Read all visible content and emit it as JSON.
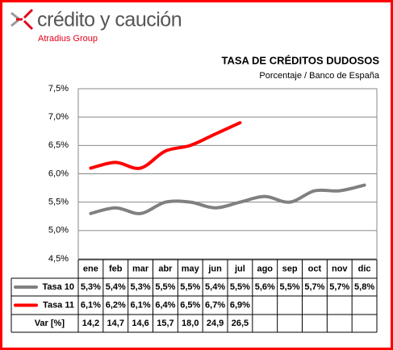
{
  "logo": {
    "brand": "crédito y caución",
    "group": "Atradius Group"
  },
  "chart_data": {
    "type": "line",
    "title": "TASA DE CRÉDITOS DUDOSOS",
    "subtitle": "Porcentaje / Banco de España",
    "categories": [
      "ene",
      "feb",
      "mar",
      "abr",
      "may",
      "jun",
      "jul",
      "ago",
      "sep",
      "oct",
      "nov",
      "dic"
    ],
    "series": [
      {
        "name": "Tasa 10",
        "color": "#808080",
        "values": [
          5.3,
          5.4,
          5.3,
          5.5,
          5.5,
          5.4,
          5.5,
          5.6,
          5.5,
          5.7,
          5.7,
          5.8
        ],
        "value_labels": [
          "5,3%",
          "5,4%",
          "5,3%",
          "5,5%",
          "5,5%",
          "5,4%",
          "5,5%",
          "5,6%",
          "5,5%",
          "5,7%",
          "5,7%",
          "5,8%"
        ]
      },
      {
        "name": "Tasa 11",
        "color": "#ff0000",
        "values": [
          6.1,
          6.2,
          6.1,
          6.4,
          6.5,
          6.7,
          6.9,
          null,
          null,
          null,
          null,
          null
        ],
        "value_labels": [
          "6,1%",
          "6,2%",
          "6,1%",
          "6,4%",
          "6,5%",
          "6,7%",
          "6,9%",
          null,
          null,
          null,
          null,
          null
        ]
      }
    ],
    "var": {
      "name": "Var [%]",
      "values": [
        14.2,
        14.7,
        14.6,
        15.7,
        18.0,
        24.9,
        26.5
      ],
      "value_labels": [
        "14,2",
        "14,7",
        "14,6",
        "15,7",
        "18,0",
        "24,9",
        "26,5"
      ]
    },
    "ylim": [
      4.5,
      7.5
    ],
    "yticks": [
      {
        "value": 4.5,
        "label": "4,5%"
      },
      {
        "value": 5.0,
        "label": "5,0%"
      },
      {
        "value": 5.5,
        "label": "5,5%"
      },
      {
        "value": 6.0,
        "label": "6,0%"
      },
      {
        "value": 6.5,
        "label": "6,5%"
      },
      {
        "value": 7.0,
        "label": "7,0%"
      },
      {
        "value": 7.5,
        "label": "7,5%"
      }
    ],
    "grid": true
  }
}
